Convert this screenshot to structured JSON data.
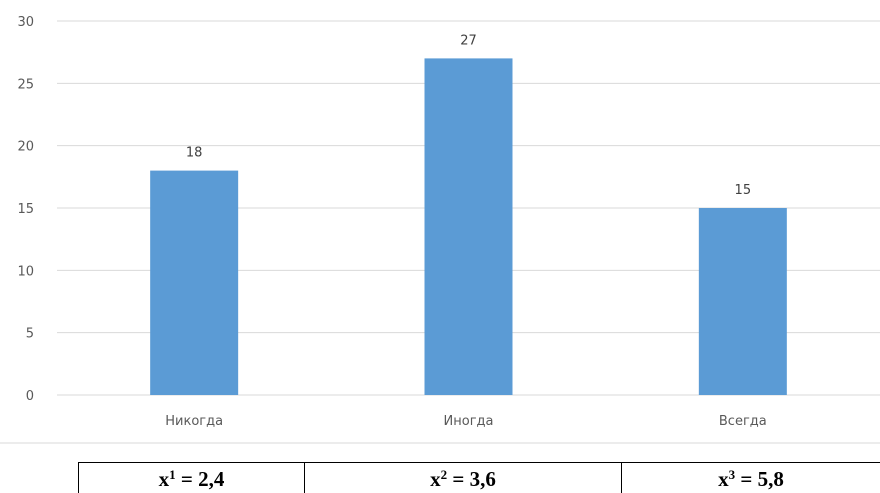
{
  "chart_data": {
    "type": "bar",
    "categories": [
      "Никогда",
      "Иногда",
      "Всегда"
    ],
    "values": [
      18,
      27,
      15
    ],
    "data_labels": [
      "18",
      "27",
      "15"
    ],
    "ylim": [
      0,
      30
    ],
    "yticks": [
      0,
      5,
      10,
      15,
      20,
      25,
      30
    ],
    "ytick_labels": [
      "0",
      "5",
      "10",
      "15",
      "20",
      "25",
      "30"
    ],
    "grid": true,
    "bar_color": "#5b9bd5",
    "grid_color": "#d9d9d9",
    "title": "",
    "xlabel": "",
    "ylabel": ""
  },
  "formulas": [
    {
      "var": "x",
      "sub": "1",
      "rest": " = 2,4"
    },
    {
      "var": "x",
      "sub": "2",
      "rest": " = 3,6"
    },
    {
      "var": "x",
      "sub": "3",
      "rest": " = 5,8"
    }
  ]
}
